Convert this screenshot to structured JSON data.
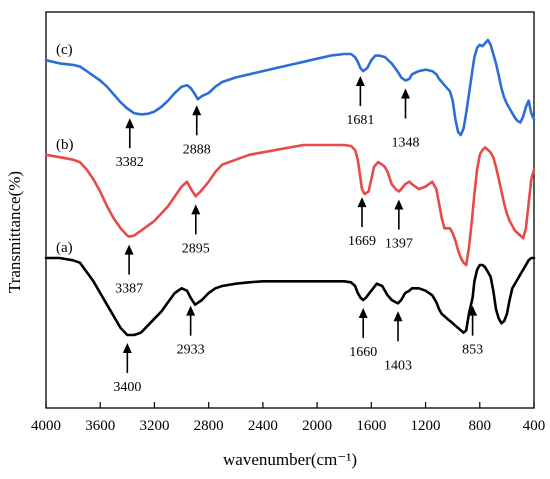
{
  "chart_data": {
    "type": "line",
    "xlabel": "wavenumber(cm⁻¹)",
    "ylabel": "Transmittance(%)",
    "xlim": [
      4000,
      400
    ],
    "x_reversed": true,
    "x_ticks": [
      4000,
      3600,
      3200,
      2800,
      2400,
      2000,
      1600,
      1200,
      800,
      400
    ],
    "y_ticks_shown": false,
    "grid": false,
    "legend": "none",
    "series": [
      {
        "name": "(c)",
        "color": "#2b6fd6",
        "x": [
          4000,
          3900,
          3800,
          3750,
          3700,
          3650,
          3600,
          3550,
          3500,
          3450,
          3400,
          3350,
          3300,
          3250,
          3200,
          3150,
          3100,
          3050,
          3000,
          2960,
          2930,
          2900,
          2880,
          2850,
          2800,
          2750,
          2700,
          2600,
          2500,
          2400,
          2300,
          2200,
          2100,
          2000,
          1900,
          1800,
          1750,
          1720,
          1700,
          1681,
          1660,
          1630,
          1600,
          1570,
          1540,
          1500,
          1450,
          1400,
          1380,
          1348,
          1320,
          1300,
          1250,
          1200,
          1150,
          1120,
          1100,
          1080,
          1060,
          1040,
          1020,
          1000,
          980,
          960,
          940,
          920,
          900,
          880,
          860,
          840,
          820,
          800,
          780,
          760,
          740,
          720,
          700,
          680,
          660,
          640,
          620,
          600,
          580,
          560,
          540,
          520,
          500,
          480,
          460,
          440,
          420,
          400
        ],
        "y": [
          85.0,
          84.0,
          83.5,
          83.0,
          81.5,
          80.0,
          78.5,
          76.5,
          74.0,
          71.5,
          69.5,
          68.0,
          67.6,
          67.8,
          68.5,
          70.0,
          72.0,
          74.5,
          76.5,
          77.0,
          76.0,
          74.0,
          72.5,
          73.5,
          74.5,
          76.5,
          78.0,
          79.5,
          80.5,
          81.5,
          82.5,
          83.5,
          84.5,
          85.5,
          86.5,
          87.0,
          87.0,
          86.0,
          84.5,
          82.5,
          81.5,
          82.5,
          85.0,
          86.5,
          86.5,
          86.0,
          84.0,
          81.0,
          79.5,
          78.5,
          79.0,
          80.5,
          81.5,
          82.0,
          81.5,
          80.5,
          79.0,
          78.0,
          77.0,
          76.0,
          75.0,
          72.0,
          66.0,
          62.0,
          61.0,
          63.0,
          68.0,
          74.0,
          80.0,
          86.0,
          89.0,
          90.0,
          89.5,
          90.5,
          91.5,
          90.0,
          87.0,
          84.0,
          80.0,
          76.0,
          73.0,
          71.0,
          69.5,
          68.0,
          66.5,
          65.5,
          65.0,
          67.0,
          70.0,
          72.0,
          68.0,
          66.0
        ]
      },
      {
        "name": "(b)",
        "color": "#e84a4a",
        "x": [
          4000,
          3900,
          3800,
          3750,
          3700,
          3650,
          3600,
          3550,
          3500,
          3450,
          3400,
          3387,
          3350,
          3300,
          3250,
          3200,
          3150,
          3100,
          3050,
          3000,
          2960,
          2930,
          2895,
          2860,
          2800,
          2750,
          2700,
          2600,
          2500,
          2400,
          2300,
          2200,
          2100,
          2000,
          1900,
          1800,
          1750,
          1720,
          1700,
          1669,
          1650,
          1620,
          1600,
          1580,
          1550,
          1520,
          1500,
          1480,
          1450,
          1420,
          1397,
          1380,
          1350,
          1320,
          1300,
          1250,
          1200,
          1150,
          1120,
          1100,
          1080,
          1060,
          1040,
          1020,
          1000,
          980,
          960,
          940,
          920,
          900,
          880,
          860,
          840,
          820,
          800,
          780,
          760,
          740,
          720,
          700,
          680,
          660,
          640,
          620,
          600,
          580,
          560,
          540,
          520,
          500,
          480,
          460,
          440,
          420,
          400
        ],
        "y": [
          55.0,
          54.5,
          54.0,
          53.5,
          52.0,
          50.0,
          47.5,
          44.5,
          42.0,
          40.0,
          38.5,
          38.3,
          38.5,
          39.5,
          40.5,
          41.5,
          43.0,
          44.5,
          46.5,
          48.5,
          49.5,
          48.0,
          46.5,
          47.5,
          49.5,
          51.5,
          53.0,
          54.0,
          55.0,
          55.5,
          56.0,
          56.5,
          57.0,
          57.0,
          57.0,
          57.0,
          56.8,
          56.0,
          54.0,
          48.0,
          47.0,
          47.5,
          50.0,
          52.5,
          53.5,
          53.0,
          52.5,
          51.5,
          49.0,
          48.0,
          47.5,
          48.0,
          49.0,
          49.5,
          49.0,
          48.0,
          48.5,
          49.5,
          48.0,
          45.0,
          42.0,
          40.0,
          40.0,
          40.0,
          39.0,
          37.5,
          35.5,
          34.0,
          33.0,
          32.5,
          36.0,
          41.0,
          47.0,
          52.0,
          55.0,
          56.0,
          56.5,
          56.0,
          55.5,
          54.5,
          52.5,
          50.0,
          47.5,
          45.0,
          43.0,
          41.5,
          40.5,
          39.5,
          39.0,
          38.5,
          38.0,
          40.0,
          45.0,
          50.0,
          52.0
        ]
      },
      {
        "name": "(a)",
        "color": "#000000",
        "x": [
          4000,
          3900,
          3800,
          3750,
          3700,
          3650,
          3600,
          3550,
          3500,
          3450,
          3400,
          3350,
          3300,
          3250,
          3200,
          3150,
          3100,
          3050,
          3000,
          2960,
          2933,
          2900,
          2850,
          2800,
          2750,
          2700,
          2600,
          2500,
          2400,
          2300,
          2200,
          2100,
          2000,
          1900,
          1800,
          1750,
          1720,
          1700,
          1680,
          1660,
          1640,
          1600,
          1560,
          1520,
          1480,
          1450,
          1420,
          1403,
          1380,
          1350,
          1320,
          1300,
          1250,
          1200,
          1150,
          1120,
          1100,
          1080,
          1060,
          1040,
          1020,
          1000,
          980,
          960,
          940,
          920,
          900,
          880,
          853,
          840,
          820,
          800,
          780,
          760,
          740,
          720,
          700,
          680,
          660,
          640,
          620,
          600,
          580,
          560,
          540,
          520,
          500,
          480,
          460,
          440,
          420,
          400
        ],
        "y": [
          18.0,
          18.0,
          17.5,
          17.0,
          15.0,
          13.0,
          10.5,
          8.0,
          5.5,
          3.0,
          1.5,
          1.5,
          2.0,
          3.5,
          5.0,
          6.5,
          8.5,
          10.5,
          11.5,
          11.0,
          9.5,
          8.0,
          9.0,
          10.5,
          11.5,
          12.0,
          12.5,
          12.8,
          13.0,
          13.0,
          13.0,
          13.0,
          13.0,
          13.0,
          13.0,
          12.8,
          12.0,
          10.5,
          9.5,
          9.0,
          9.5,
          11.0,
          12.5,
          12.0,
          10.0,
          9.0,
          8.5,
          8.3,
          9.0,
          10.5,
          11.0,
          11.5,
          11.5,
          11.0,
          10.0,
          8.5,
          7.0,
          6.0,
          5.5,
          5.0,
          4.5,
          4.0,
          3.5,
          3.0,
          2.5,
          2.0,
          2.5,
          6.0,
          9.5,
          13.0,
          15.5,
          16.5,
          16.5,
          16.0,
          15.0,
          14.0,
          11.0,
          7.0,
          5.0,
          4.0,
          4.5,
          6.0,
          9.0,
          11.5,
          12.5,
          13.5,
          14.5,
          15.5,
          16.5,
          17.5,
          18.0,
          18.0
        ]
      }
    ],
    "annotations": [
      {
        "label": "3382",
        "series": "(c)",
        "x": 3382
      },
      {
        "label": "2888",
        "series": "(c)",
        "x": 2888
      },
      {
        "label": "1681",
        "series": "(c)",
        "x": 1681
      },
      {
        "label": "1348",
        "series": "(c)",
        "x": 1348
      },
      {
        "label": "3387",
        "series": "(b)",
        "x": 3387
      },
      {
        "label": "2895",
        "series": "(b)",
        "x": 2895
      },
      {
        "label": "1669",
        "series": "(b)",
        "x": 1669
      },
      {
        "label": "1397",
        "series": "(b)",
        "x": 1397
      },
      {
        "label": "3400",
        "series": "(a)",
        "x": 3400
      },
      {
        "label": "2933",
        "series": "(a)",
        "x": 2933
      },
      {
        "label": "1660",
        "series": "(a)",
        "x": 1660
      },
      {
        "label": "1403",
        "series": "(a)",
        "x": 1403
      },
      {
        "label": "853",
        "series": "(a)",
        "x": 853
      }
    ]
  }
}
